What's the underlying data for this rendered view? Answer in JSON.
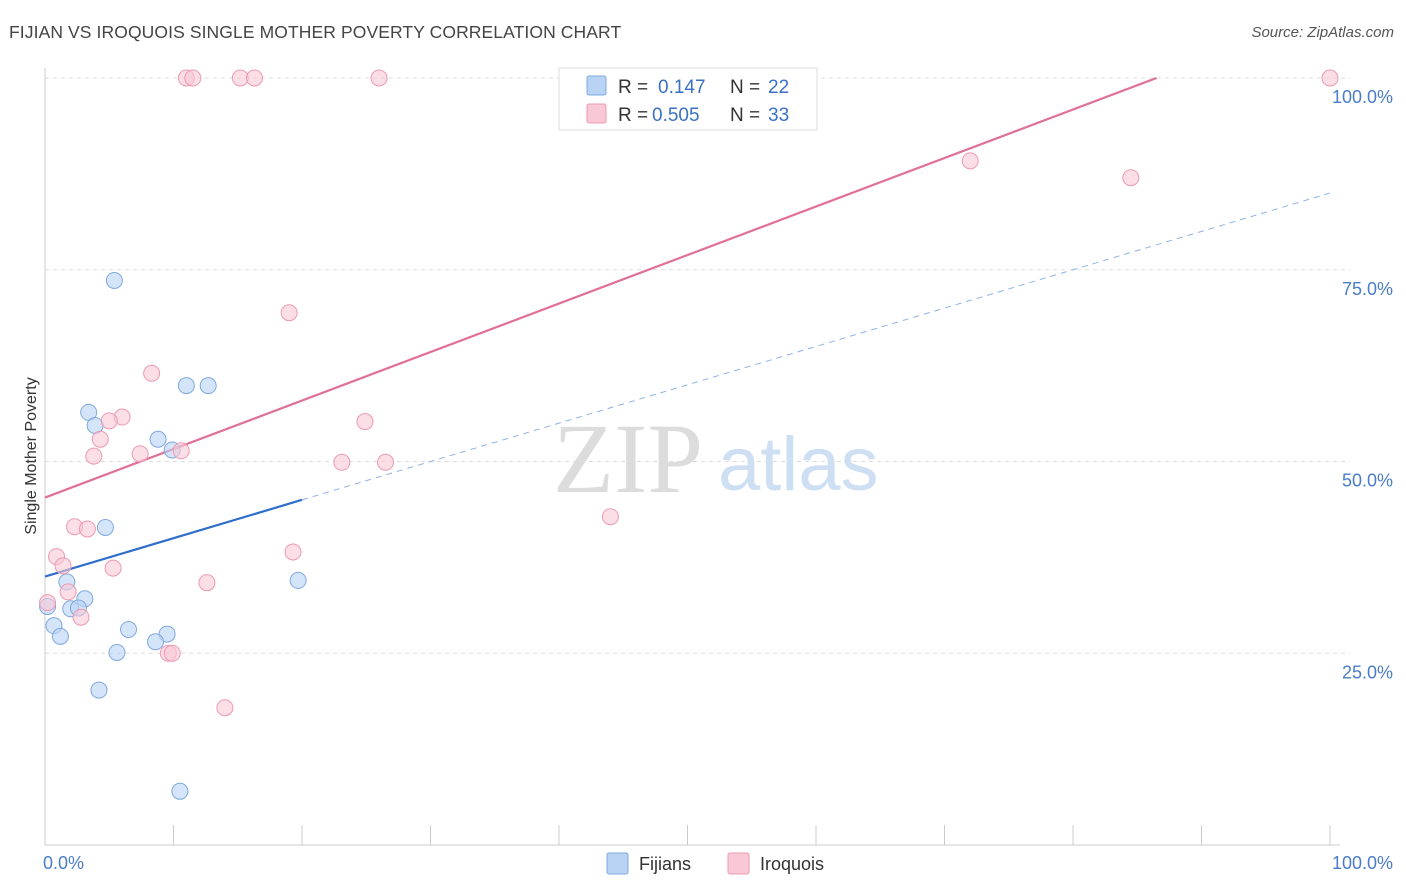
{
  "title": "FIJIAN VS IROQUOIS SINGLE MOTHER POVERTY CORRELATION CHART",
  "source": "Source: ZipAtlas.com",
  "watermark": {
    "zip": "ZIP",
    "atlas": "atlas"
  },
  "colors": {
    "fijians_fill": "#b9d3f5",
    "fijians_stroke": "#7fa8de",
    "fijians_line": "#2f6fcb",
    "iroquois_fill": "#f8c8d6",
    "iroquois_stroke": "#ec9ab2",
    "iroquois_line": "#e0709a",
    "grid": "#dddddd",
    "tick_label": "#4a7cc8"
  },
  "legend": {
    "rows": [
      {
        "r_label": "R =",
        "r_value": "0.147",
        "n_label": "N =",
        "n_value": "22"
      },
      {
        "r_label": "R =",
        "r_value": "0.505",
        "n_label": "N =",
        "n_value": "33"
      }
    ]
  },
  "chart_data": {
    "type": "scatter",
    "xlabel": "",
    "ylabel": "Single Mother Poverty",
    "xlim": [
      0,
      100
    ],
    "ylim": [
      0,
      100
    ],
    "x_tick_labels": [
      "0.0%",
      "100.0%"
    ],
    "y_ticks": [
      25,
      50,
      75,
      100
    ],
    "y_tick_labels": [
      "25.0%",
      "50.0%",
      "75.0%",
      "100.0%"
    ],
    "grid": true,
    "series": [
      {
        "name": "Fijians",
        "r": 0.147,
        "n": 22,
        "trend": {
          "x0": 0,
          "y0": 35.0,
          "x1": 20,
          "y1": 45.0,
          "dashed_to_x": 100,
          "dashed_to_y": 85.0
        },
        "points": [
          [
            5.4,
            73.6
          ],
          [
            11.0,
            59.9
          ],
          [
            12.7,
            59.9
          ],
          [
            3.4,
            56.4
          ],
          [
            3.9,
            54.7
          ],
          [
            8.8,
            52.9
          ],
          [
            9.9,
            51.5
          ],
          [
            4.7,
            41.4
          ],
          [
            19.7,
            34.5
          ],
          [
            1.7,
            34.3
          ],
          [
            3.1,
            32.1
          ],
          [
            2.0,
            30.8
          ],
          [
            2.6,
            30.9
          ],
          [
            0.2,
            31.1
          ],
          [
            0.7,
            28.6
          ],
          [
            6.5,
            28.1
          ],
          [
            1.2,
            27.2
          ],
          [
            9.5,
            27.5
          ],
          [
            8.6,
            26.5
          ],
          [
            5.6,
            25.1
          ],
          [
            4.2,
            20.2
          ],
          [
            10.5,
            7.0
          ]
        ]
      },
      {
        "name": "Iroquois",
        "r": 0.505,
        "n": 33,
        "trend": {
          "x0": 0,
          "y0": 45.3,
          "x1": 86.5,
          "y1": 100.0
        },
        "points": [
          [
            11.0,
            100
          ],
          [
            11.5,
            100
          ],
          [
            15.2,
            100
          ],
          [
            16.3,
            100
          ],
          [
            26.0,
            100
          ],
          [
            100,
            100
          ],
          [
            72.0,
            89.2
          ],
          [
            84.5,
            87.0
          ],
          [
            19.0,
            69.4
          ],
          [
            8.3,
            61.5
          ],
          [
            6.0,
            55.8
          ],
          [
            5.0,
            55.3
          ],
          [
            24.9,
            55.2
          ],
          [
            4.3,
            52.9
          ],
          [
            7.4,
            51.0
          ],
          [
            10.6,
            51.4
          ],
          [
            3.8,
            50.7
          ],
          [
            23.1,
            49.9
          ],
          [
            26.5,
            49.9
          ],
          [
            44.0,
            42.8
          ],
          [
            2.3,
            41.5
          ],
          [
            3.3,
            41.2
          ],
          [
            19.3,
            38.2
          ],
          [
            0.9,
            37.6
          ],
          [
            1.4,
            36.4
          ],
          [
            5.3,
            36.1
          ],
          [
            12.6,
            34.2
          ],
          [
            1.8,
            33.0
          ],
          [
            0.2,
            31.6
          ],
          [
            2.8,
            29.7
          ],
          [
            9.6,
            25.0
          ],
          [
            9.9,
            25.0
          ],
          [
            14.0,
            17.9
          ]
        ]
      }
    ]
  }
}
